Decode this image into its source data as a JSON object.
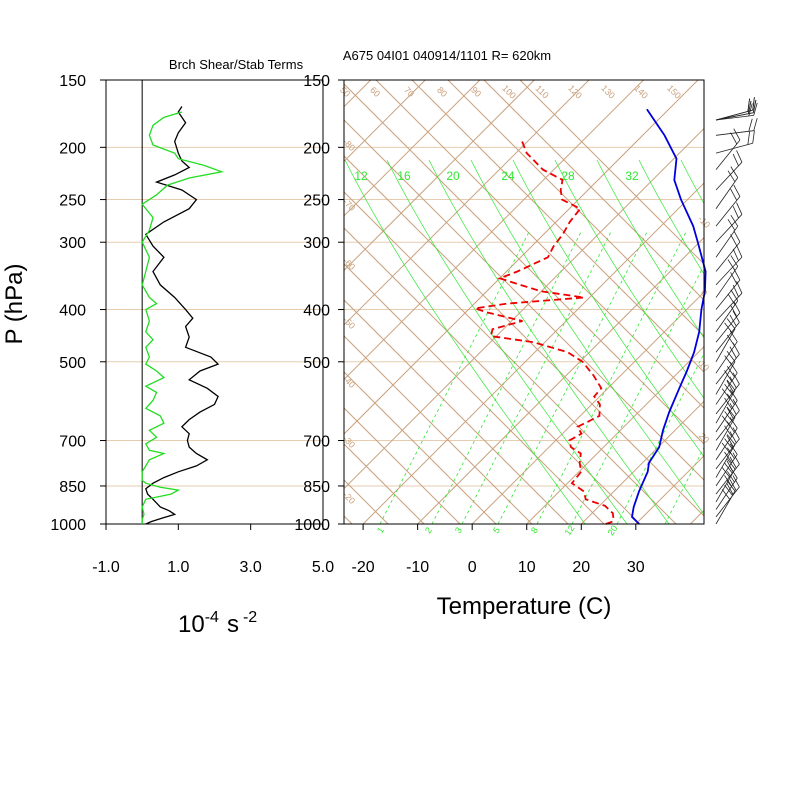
{
  "colors": {
    "isobar": "#e6cdb0",
    "isotherm": "#c9a27e",
    "mixing_ratio": "#2ee82e",
    "temperature": "#0000dd",
    "dewpoint": "#ee0000",
    "shear": "#000000",
    "stability": "#22dd22",
    "barb": "#222222"
  },
  "chart_data": [
    {
      "type": "line",
      "title": "Brch Shear/Stab Terms",
      "xlabel_base": "10",
      "xlabel_exp": "-4",
      "xlabel_unit": "s",
      "xlabel_unit_exp": "-2",
      "ylabel": "P (hPa)",
      "xlim": [
        -1.0,
        5.0
      ],
      "xticks": [
        "-1.0",
        "1.0",
        "3.0",
        "5.0"
      ],
      "xtick_values": [
        -1,
        1,
        3,
        5
      ],
      "pressure_ticks": [
        150,
        200,
        250,
        300,
        400,
        500,
        700,
        850,
        1000
      ],
      "pressure_tick_labels": [
        "150",
        "200",
        "250",
        "300",
        "400",
        "500",
        "700",
        "850",
        "1000"
      ],
      "zero_line": 0,
      "series": [
        {
          "name": "shear term",
          "color": "#000000",
          "points": [
            [
              1000,
              0.1
            ],
            [
              990,
              0.25
            ],
            [
              975,
              0.55
            ],
            [
              960,
              0.9
            ],
            [
              945,
              0.75
            ],
            [
              930,
              0.5
            ],
            [
              900,
              0.3
            ],
            [
              880,
              0.15
            ],
            [
              860,
              0.1
            ],
            [
              840,
              0.3
            ],
            [
              820,
              0.6
            ],
            [
              800,
              1.0
            ],
            [
              780,
              1.5
            ],
            [
              760,
              1.8
            ],
            [
              740,
              1.5
            ],
            [
              720,
              1.3
            ],
            [
              700,
              1.25
            ],
            [
              680,
              1.3
            ],
            [
              660,
              1.1
            ],
            [
              640,
              1.3
            ],
            [
              620,
              1.6
            ],
            [
              600,
              2.0
            ],
            [
              580,
              2.1
            ],
            [
              560,
              1.8
            ],
            [
              540,
              1.3
            ],
            [
              520,
              1.6
            ],
            [
              505,
              2.1
            ],
            [
              490,
              1.9
            ],
            [
              470,
              1.2
            ],
            [
              450,
              1.3
            ],
            [
              430,
              1.2
            ],
            [
              415,
              1.4
            ],
            [
              400,
              1.2
            ],
            [
              380,
              0.9
            ],
            [
              360,
              0.5
            ],
            [
              340,
              0.3
            ],
            [
              320,
              0.6
            ],
            [
              305,
              0.3
            ],
            [
              290,
              0.1
            ],
            [
              275,
              0.6
            ],
            [
              260,
              1.3
            ],
            [
              250,
              1.5
            ],
            [
              240,
              1.1
            ],
            [
              232,
              0.4
            ],
            [
              225,
              0.9
            ],
            [
              218,
              1.3
            ],
            [
              212,
              1.1
            ],
            [
              205,
              1.0
            ],
            [
              195,
              0.9
            ],
            [
              188,
              1.0
            ],
            [
              180,
              1.2
            ],
            [
              172,
              1.0
            ],
            [
              168,
              1.1
            ]
          ]
        },
        {
          "name": "stability term",
          "color": "#22dd22",
          "points": [
            [
              1000,
              0.0
            ],
            [
              980,
              0.0
            ],
            [
              960,
              0.05
            ],
            [
              930,
              0.0
            ],
            [
              900,
              0.1
            ],
            [
              880,
              0.8
            ],
            [
              865,
              1.0
            ],
            [
              855,
              0.5
            ],
            [
              840,
              0.1
            ],
            [
              830,
              0.0
            ],
            [
              800,
              0.0
            ],
            [
              780,
              0.1
            ],
            [
              760,
              0.2
            ],
            [
              740,
              0.6
            ],
            [
              730,
              0.2
            ],
            [
              710,
              0.1
            ],
            [
              690,
              0.4
            ],
            [
              670,
              0.2
            ],
            [
              650,
              0.6
            ],
            [
              630,
              0.5
            ],
            [
              610,
              0.1
            ],
            [
              590,
              0.3
            ],
            [
              570,
              0.4
            ],
            [
              555,
              0.1
            ],
            [
              535,
              0.6
            ],
            [
              520,
              0.4
            ],
            [
              505,
              0.1
            ],
            [
              490,
              0.2
            ],
            [
              470,
              0.1
            ],
            [
              455,
              0.3
            ],
            [
              440,
              0.1
            ],
            [
              420,
              0.2
            ],
            [
              400,
              0.1
            ],
            [
              390,
              0.4
            ],
            [
              380,
              0.2
            ],
            [
              360,
              0.0
            ],
            [
              340,
              0.1
            ],
            [
              320,
              0.2
            ],
            [
              300,
              0.0
            ],
            [
              285,
              0.2
            ],
            [
              270,
              0.3
            ],
            [
              255,
              0.0
            ],
            [
              245,
              0.4
            ],
            [
              235,
              0.7
            ],
            [
              228,
              1.3
            ],
            [
              222,
              2.2
            ],
            [
              216,
              1.7
            ],
            [
              210,
              1.0
            ],
            [
              205,
              0.9
            ],
            [
              198,
              0.3
            ],
            [
              190,
              0.2
            ],
            [
              182,
              0.3
            ],
            [
              176,
              0.6
            ],
            [
              172,
              1.1
            ]
          ]
        }
      ]
    },
    {
      "type": "line",
      "title": "A675 04I01 040914/1101 R= 620km",
      "xlabel": "Temperature (C)",
      "xlim": [
        -23.5,
        42.5
      ],
      "xticks": [
        "-20",
        "-10",
        "0",
        "10",
        "20",
        "30"
      ],
      "xtick_values": [
        -20,
        -10,
        0,
        10,
        20,
        30
      ],
      "pressure_ticks": [
        150,
        200,
        250,
        300,
        400,
        500,
        700,
        850,
        1000
      ],
      "pressure_tick_labels": [
        "150",
        "200",
        "250",
        "300",
        "400",
        "500",
        "700",
        "850",
        "1000"
      ],
      "skew": "isotherms slanted 45 degrees",
      "isotherm_labels": [
        "-80",
        "-70",
        "-60",
        "-50",
        "-40",
        "-30",
        "-20",
        "-10",
        "0",
        "10",
        "20",
        "30",
        "40"
      ],
      "dry_adiabat_labels": [
        "50",
        "60",
        "70",
        "80",
        "90",
        "100",
        "110",
        "120",
        "130",
        "140",
        "150"
      ],
      "mixing_ratio_labels": [
        "1",
        "2",
        "3",
        "5",
        "8",
        "12",
        "20"
      ],
      "theta_e_labels": [
        "12",
        "16",
        "20",
        "24",
        "28",
        "32"
      ],
      "series": [
        {
          "name": "temperature",
          "color": "#0000dd",
          "style": "solid",
          "points": [
            [
              1000,
              30.6
            ],
            [
              970,
              28.0
            ],
            [
              930,
              26.5
            ],
            [
              870,
              24.6
            ],
            [
              800,
              22.6
            ],
            [
              770,
              21.2
            ],
            [
              720,
              20.2
            ],
            [
              670,
              17.8
            ],
            [
              620,
              15.6
            ],
            [
              560,
              13.1
            ],
            [
              520,
              11.3
            ],
            [
              480,
              9.2
            ],
            [
              440,
              6.4
            ],
            [
              400,
              2.7
            ],
            [
              370,
              0.0
            ],
            [
              340,
              -3.5
            ],
            [
              300,
              -10.3
            ],
            [
              280,
              -14.1
            ],
            [
              250,
              -21.2
            ],
            [
              230,
              -26.0
            ],
            [
              210,
              -29.5
            ],
            [
              190,
              -36.0
            ],
            [
              170,
              -44.0
            ]
          ]
        },
        {
          "name": "dewpoint",
          "color": "#ee0000",
          "style": "dashed",
          "points": [
            [
              1000,
              24.5
            ],
            [
              990,
              25.3
            ],
            [
              975,
              24.8
            ],
            [
              955,
              23.8
            ],
            [
              925,
              21.0
            ],
            [
              900,
              16.3
            ],
            [
              870,
              14.5
            ],
            [
              840,
              10.8
            ],
            [
              800,
              10.4
            ],
            [
              770,
              8.5
            ],
            [
              740,
              7.0
            ],
            [
              720,
              4.0
            ],
            [
              700,
              2.5
            ],
            [
              680,
              3.5
            ],
            [
              660,
              1.5
            ],
            [
              630,
              3.5
            ],
            [
              600,
              1.5
            ],
            [
              580,
              -1.0
            ],
            [
              560,
              -1.2
            ],
            [
              530,
              -5.0
            ],
            [
              500,
              -9.5
            ],
            [
              480,
              -14.0
            ],
            [
              460,
              -22.0
            ],
            [
              448,
              -31.0
            ],
            [
              435,
              -32.0
            ],
            [
              420,
              -28.0
            ],
            [
              405,
              -36.0
            ],
            [
              398,
              -39.0
            ],
            [
              390,
              -34.0
            ],
            [
              380,
              -21.0
            ],
            [
              370,
              -30.0
            ],
            [
              360,
              -35.0
            ],
            [
              350,
              -40.0
            ],
            [
              340,
              -38.0
            ],
            [
              320,
              -35.0
            ],
            [
              305,
              -36.0
            ],
            [
              290,
              -36.5
            ],
            [
              275,
              -37.5
            ],
            [
              260,
              -38.0
            ],
            [
              250,
              -43.0
            ],
            [
              240,
              -45.0
            ],
            [
              230,
              -46.5
            ],
            [
              220,
              -52.0
            ],
            [
              205,
              -58.0
            ],
            [
              195,
              -61.0
            ]
          ]
        }
      ]
    }
  ]
}
